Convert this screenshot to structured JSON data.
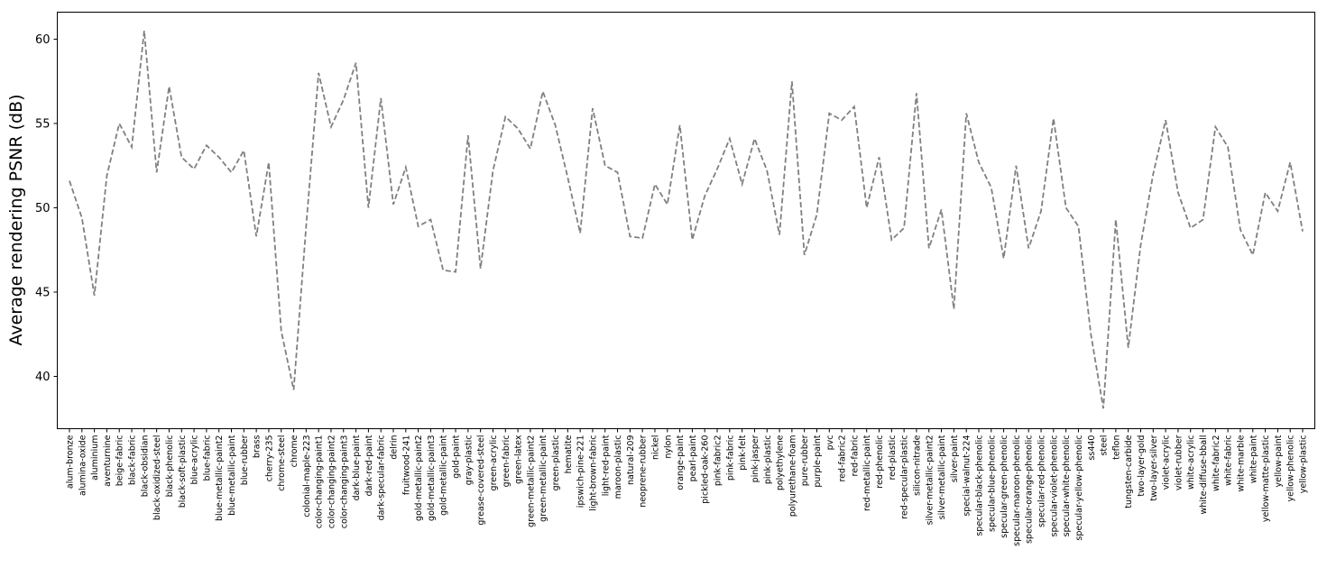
{
  "chart_data": {
    "type": "line",
    "title": "",
    "xlabel": "",
    "ylabel": "Average rendering PSNR (dB)",
    "ylim": [
      36.9,
      61.6
    ],
    "yticks": [
      40,
      45,
      50,
      55,
      60
    ],
    "grid": false,
    "line_color": "#808080",
    "line_style": "dashed",
    "categories": [
      "alum-bronze",
      "alumina-oxide",
      "aluminium",
      "aventurnine",
      "beige-fabric",
      "black-fabric",
      "black-obsidian",
      "black-oxidized-steel",
      "black-phenolic",
      "black-soft-plastic",
      "blue-acrylic",
      "blue-fabric",
      "blue-metallic-paint2",
      "blue-metallic-paint",
      "blue-rubber",
      "brass",
      "cherry-235",
      "chrome-steel",
      "chrome",
      "colonial-maple-223",
      "color-changing-paint1",
      "color-changing-paint2",
      "color-changing-paint3",
      "dark-blue-paint",
      "dark-red-paint",
      "dark-specular-fabric",
      "delrin",
      "fruitwood-241",
      "gold-metallic-paint2",
      "gold-metallic-paint3",
      "gold-metallic-paint",
      "gold-paint",
      "gray-plastic",
      "grease-covered-steel",
      "green-acrylic",
      "green-fabric",
      "green-latex",
      "green-metallic-paint2",
      "green-metallic-paint",
      "green-plastic",
      "hematite",
      "ipswich-pine-221",
      "light-brown-fabric",
      "light-red-paint",
      "maroon-plastic",
      "natural-209",
      "neoprene-rubber",
      "nickel",
      "nylon",
      "orange-paint",
      "pearl-paint",
      "pickled-oak-260",
      "pink-fabric2",
      "pink-fabric",
      "pink-felt",
      "pink-jasper",
      "pink-plastic",
      "polyethylene",
      "polyurethane-foam",
      "pure-rubber",
      "purple-paint",
      "pvc",
      "red-fabric2",
      "red-fabric",
      "red-metallic-paint",
      "red-phenolic",
      "red-plastic",
      "red-specular-plastic",
      "silicon-nitrade",
      "silver-metallic-paint2",
      "silver-metallic-paint",
      "silver-paint",
      "special-walnut-224",
      "specular-black-phenolic",
      "specular-blue-phenolic",
      "specular-green-phenolic",
      "specular-maroon-phenolic",
      "specular-orange-phenolic",
      "specular-red-phenolic",
      "specular-violet-phenolic",
      "specular-white-phenolic",
      "specular-yellow-phenolic",
      "ss440",
      "steel",
      "teflon",
      "tungsten-carbide",
      "two-layer-gold",
      "two-layer-silver",
      "violet-acrylic",
      "violet-rubber",
      "white-acrylic",
      "white-diffuse-bball",
      "white-fabric2",
      "white-fabric",
      "white-marble",
      "white-paint",
      "yellow-matte-plastic",
      "yellow-paint",
      "yellow-phenolic",
      "yellow-plastic"
    ],
    "values": [
      51.6,
      49.4,
      44.8,
      51.9,
      55.0,
      53.6,
      60.5,
      52.1,
      57.2,
      53.0,
      52.3,
      53.7,
      53.0,
      52.1,
      53.4,
      48.3,
      52.7,
      42.7,
      39.2,
      48.9,
      58.0,
      54.8,
      56.4,
      58.6,
      50.0,
      56.5,
      50.2,
      52.4,
      48.9,
      49.3,
      46.3,
      46.2,
      54.3,
      46.4,
      52.2,
      55.4,
      54.7,
      53.5,
      56.9,
      54.9,
      51.8,
      48.5,
      55.9,
      52.5,
      52.1,
      48.3,
      48.2,
      51.4,
      50.2,
      54.9,
      48.1,
      50.7,
      52.3,
      54.1,
      51.4,
      54.1,
      52.2,
      48.4,
      57.5,
      47.2,
      49.6,
      55.6,
      55.2,
      56.0,
      50.0,
      53.0,
      48.1,
      48.8,
      56.8,
      47.6,
      49.9,
      44.0,
      55.6,
      52.7,
      51.2,
      47.0,
      52.5,
      47.6,
      49.8,
      55.3,
      50.0,
      48.9,
      42.5,
      38.1,
      49.3,
      41.7,
      47.8,
      52.0,
      55.2,
      50.9,
      48.8,
      49.3,
      54.8,
      53.6,
      48.7,
      47.2,
      50.9,
      49.8,
      52.7,
      48.6
    ]
  }
}
